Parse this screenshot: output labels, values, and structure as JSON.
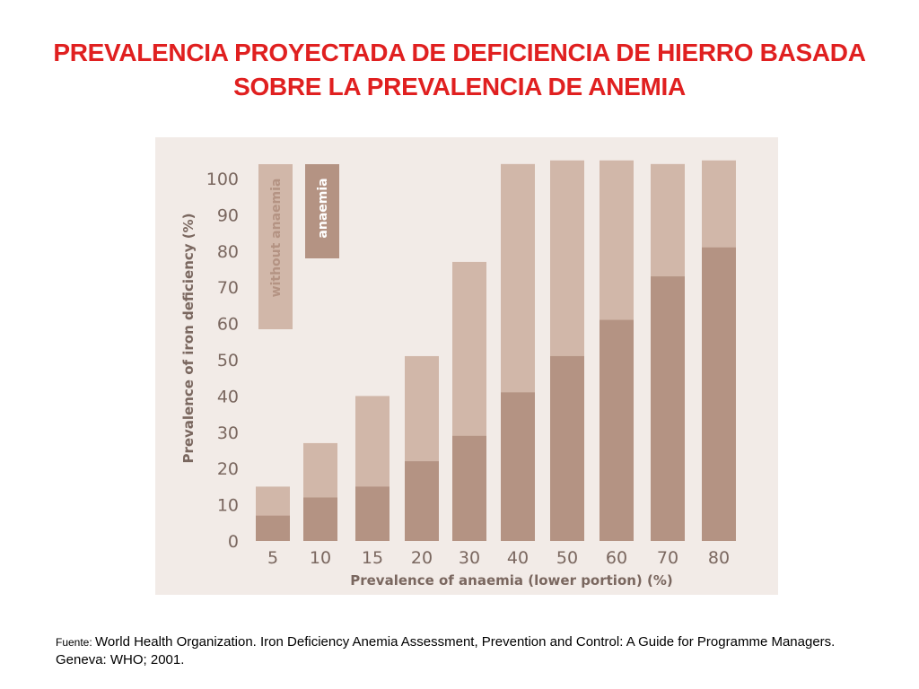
{
  "slide": {
    "title_line1": "PREVALENCIA PROYECTADA DE DEFICIENCIA DE HIERRO BASADA",
    "title_line2": "SOBRE LA PREVALENCIA DE ANEMIA",
    "source_label": "Fuente: ",
    "source_text": "World Health Organization. Iron Deficiency Anemia Assessment, Prevention and Control: A Guide for Programme Managers. Geneva: WHO; 2001."
  },
  "colors": {
    "panel_bg": "#f2ebe7",
    "light_bar": "#d1b7a9",
    "dark_bar": "#b49383",
    "axis_text": "#7a675f",
    "title": "#e02020",
    "legend_text": "#ffffff"
  },
  "chart_data": {
    "type": "bar",
    "stacked": true,
    "categories": [
      "5",
      "10",
      "15",
      "20",
      "30",
      "40",
      "50",
      "60",
      "70",
      "80"
    ],
    "series": [
      {
        "name": "anaemia",
        "values": [
          7,
          12,
          15,
          22,
          29,
          41,
          51,
          61,
          73,
          81
        ]
      },
      {
        "name": "without anaemia",
        "values": [
          8,
          15,
          25,
          29,
          48,
          63,
          54,
          44,
          31,
          24
        ]
      }
    ],
    "xlabel": "Prevalence of anaemia (lower portion) (%)",
    "ylabel": "Prevalence of iron deficiency (%)",
    "yticks": [
      "0",
      "10",
      "20",
      "30",
      "40",
      "50",
      "60",
      "70",
      "80",
      "90",
      "100"
    ],
    "ylim": [
      0,
      100
    ],
    "grid": false,
    "legend_position": "top-left"
  }
}
